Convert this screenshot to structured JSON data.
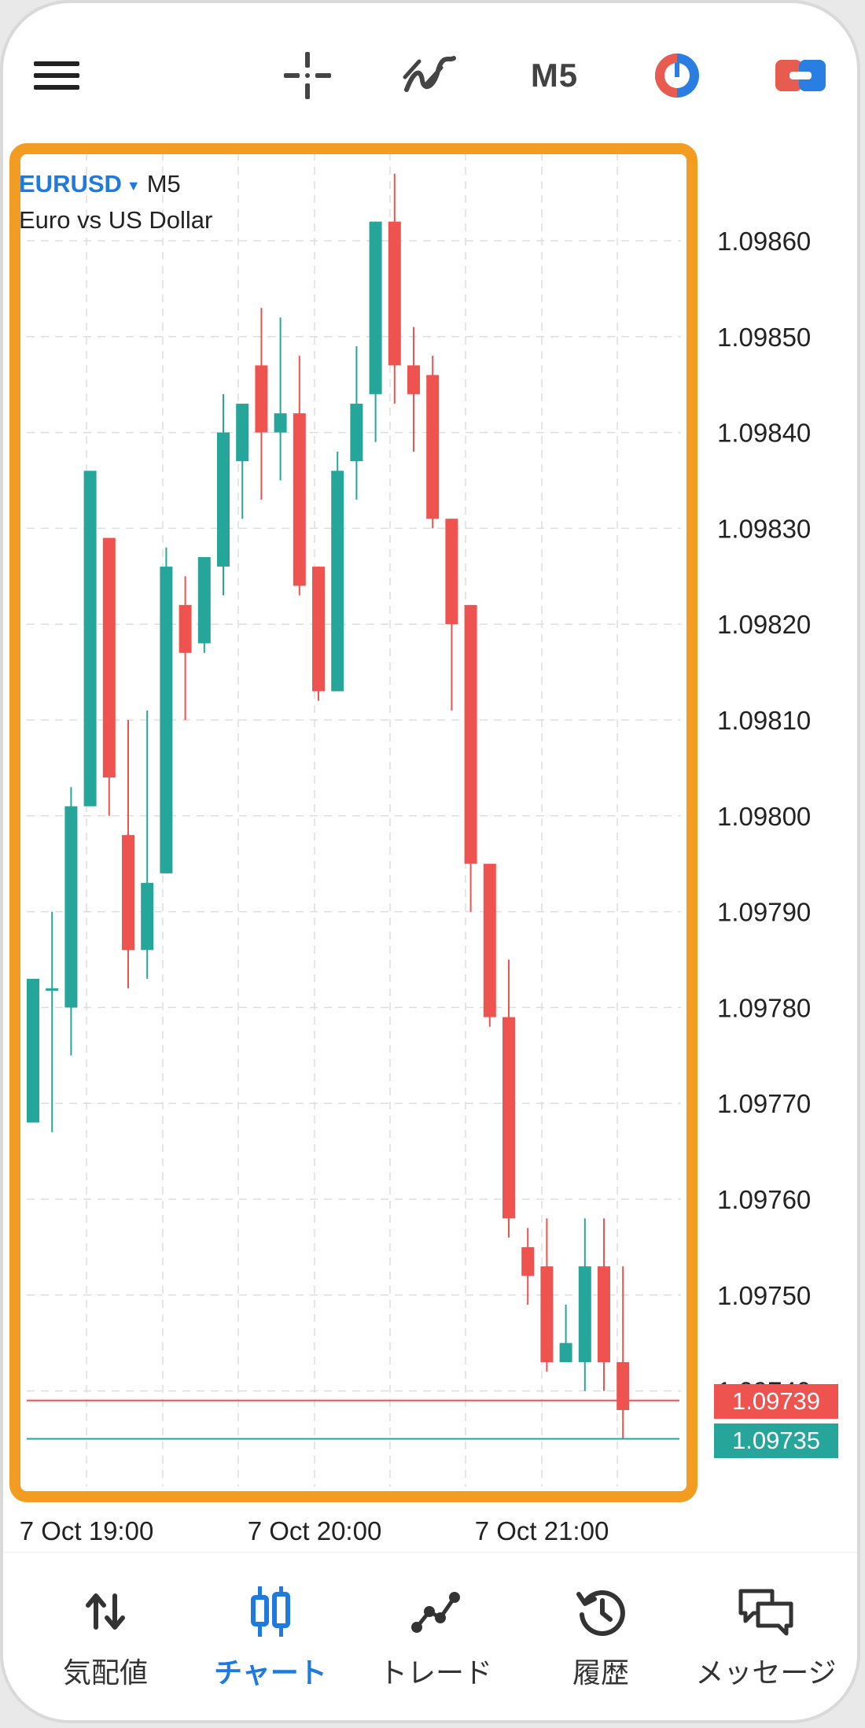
{
  "toolbar": {
    "timeframe": "M5"
  },
  "chart": {
    "symbol": "EURUSD",
    "timeframe": "M5",
    "description": "Euro vs US Dollar",
    "bid_price": "1.09739",
    "ask_price": "1.09735",
    "colors": {
      "bull": "#26a69a",
      "bear": "#ef5350",
      "highlight": "#f39c22",
      "accent": "#1f7ae0"
    }
  },
  "chart_data": {
    "type": "candlestick",
    "symbol": "EURUSD",
    "timeframe": "M5",
    "y_ticks": [
      "1.09860",
      "1.09850",
      "1.09840",
      "1.09830",
      "1.09820",
      "1.09810",
      "1.09800",
      "1.09790",
      "1.09780",
      "1.09770",
      "1.09760",
      "1.09750",
      "1.09740"
    ],
    "x_ticks": [
      "7 Oct 19:00",
      "7 Oct 20:00",
      "7 Oct 21:00"
    ],
    "ylim": [
      1.0973,
      1.09868
    ],
    "candles": [
      {
        "o": 1.09768,
        "h": 1.09782,
        "l": 1.09768,
        "c": 1.09783
      },
      {
        "o": 1.09782,
        "h": 1.0979,
        "l": 1.09767,
        "c": 1.09782
      },
      {
        "o": 1.0978,
        "h": 1.09803,
        "l": 1.09775,
        "c": 1.09801
      },
      {
        "o": 1.09801,
        "h": 1.09836,
        "l": 1.09801,
        "c": 1.09836
      },
      {
        "o": 1.09829,
        "h": 1.09829,
        "l": 1.098,
        "c": 1.09804
      },
      {
        "o": 1.09798,
        "h": 1.0981,
        "l": 1.09782,
        "c": 1.09786
      },
      {
        "o": 1.09786,
        "h": 1.09811,
        "l": 1.09783,
        "c": 1.09793
      },
      {
        "o": 1.09794,
        "h": 1.09828,
        "l": 1.09794,
        "c": 1.09826
      },
      {
        "o": 1.09822,
        "h": 1.09825,
        "l": 1.0981,
        "c": 1.09817
      },
      {
        "o": 1.09818,
        "h": 1.09827,
        "l": 1.09817,
        "c": 1.09827
      },
      {
        "o": 1.09826,
        "h": 1.09844,
        "l": 1.09823,
        "c": 1.0984
      },
      {
        "o": 1.09837,
        "h": 1.09843,
        "l": 1.09831,
        "c": 1.09843
      },
      {
        "o": 1.09847,
        "h": 1.09853,
        "l": 1.09833,
        "c": 1.0984
      },
      {
        "o": 1.0984,
        "h": 1.09852,
        "l": 1.09835,
        "c": 1.09842
      },
      {
        "o": 1.09842,
        "h": 1.09848,
        "l": 1.09823,
        "c": 1.09824
      },
      {
        "o": 1.09826,
        "h": 1.09826,
        "l": 1.09812,
        "c": 1.09813
      },
      {
        "o": 1.09813,
        "h": 1.09838,
        "l": 1.09813,
        "c": 1.09836
      },
      {
        "o": 1.09837,
        "h": 1.09849,
        "l": 1.09833,
        "c": 1.09843
      },
      {
        "o": 1.09844,
        "h": 1.09862,
        "l": 1.09839,
        "c": 1.09862
      },
      {
        "o": 1.09862,
        "h": 1.09867,
        "l": 1.09843,
        "c": 1.09847
      },
      {
        "o": 1.09847,
        "h": 1.09851,
        "l": 1.09838,
        "c": 1.09844
      },
      {
        "o": 1.09846,
        "h": 1.09848,
        "l": 1.0983,
        "c": 1.09831
      },
      {
        "o": 1.09831,
        "h": 1.09831,
        "l": 1.09811,
        "c": 1.0982
      },
      {
        "o": 1.09822,
        "h": 1.09822,
        "l": 1.0979,
        "c": 1.09795
      },
      {
        "o": 1.09795,
        "h": 1.09795,
        "l": 1.09778,
        "c": 1.09779
      },
      {
        "o": 1.09779,
        "h": 1.09785,
        "l": 1.09756,
        "c": 1.09758
      },
      {
        "o": 1.09755,
        "h": 1.09757,
        "l": 1.09749,
        "c": 1.09752
      },
      {
        "o": 1.09753,
        "h": 1.09758,
        "l": 1.09742,
        "c": 1.09743
      },
      {
        "o": 1.09743,
        "h": 1.09749,
        "l": 1.09743,
        "c": 1.09745
      },
      {
        "o": 1.09743,
        "h": 1.09758,
        "l": 1.0974,
        "c": 1.09753
      },
      {
        "o": 1.09753,
        "h": 1.09758,
        "l": 1.0974,
        "c": 1.09743
      },
      {
        "o": 1.09743,
        "h": 1.09753,
        "l": 1.09735,
        "c": 1.09738
      }
    ]
  },
  "nav": {
    "items": [
      {
        "label": "気配値",
        "icon": "quotes-icon"
      },
      {
        "label": "チャート",
        "icon": "chart-icon"
      },
      {
        "label": "トレード",
        "icon": "trade-icon"
      },
      {
        "label": "履歴",
        "icon": "history-icon"
      },
      {
        "label": "メッセージ",
        "icon": "messages-icon"
      }
    ],
    "active": "チャート"
  }
}
